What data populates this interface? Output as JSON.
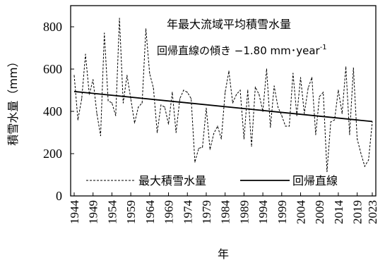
{
  "chart_data": {
    "type": "line",
    "title": "年最大流域平均積雪水量",
    "annotation": "回帰直線の傾き −1.80 mm･year",
    "annotation_superscript": "-1",
    "xlabel": "年",
    "ylabel": "積雪水量（mm）",
    "xlim": [
      1944,
      2023
    ],
    "ylim": [
      0,
      900
    ],
    "y_ticks": [
      0,
      200,
      400,
      600,
      800
    ],
    "x_ticks": [
      1944,
      1949,
      1954,
      1959,
      1964,
      1969,
      1974,
      1979,
      1984,
      1989,
      1994,
      1999,
      2004,
      2009,
      2014,
      2019,
      2023
    ],
    "legend_position": "bottom",
    "grid": false,
    "series": [
      {
        "name": "最大積雪水量",
        "style": "dashed",
        "x": [
          1944,
          1945,
          1946,
          1947,
          1948,
          1949,
          1950,
          1951,
          1952,
          1953,
          1954,
          1955,
          1956,
          1957,
          1958,
          1959,
          1960,
          1961,
          1962,
          1963,
          1964,
          1965,
          1966,
          1967,
          1968,
          1969,
          1970,
          1971,
          1972,
          1973,
          1974,
          1975,
          1976,
          1977,
          1978,
          1979,
          1980,
          1981,
          1982,
          1983,
          1984,
          1985,
          1986,
          1987,
          1988,
          1989,
          1990,
          1991,
          1992,
          1993,
          1994,
          1995,
          1996,
          1997,
          1998,
          1999,
          2000,
          2001,
          2002,
          2003,
          2004,
          2005,
          2006,
          2007,
          2008,
          2009,
          2010,
          2011,
          2012,
          2013,
          2014,
          2015,
          2016,
          2017,
          2018,
          2019,
          2020,
          2021,
          2022,
          2023
        ],
        "y": [
          570,
          360,
          460,
          670,
          480,
          550,
          390,
          285,
          770,
          450,
          440,
          380,
          840,
          440,
          570,
          460,
          345,
          420,
          440,
          790,
          580,
          510,
          300,
          430,
          420,
          340,
          490,
          300,
          460,
          500,
          490,
          460,
          160,
          225,
          230,
          415,
          220,
          295,
          330,
          270,
          490,
          590,
          440,
          480,
          500,
          270,
          500,
          235,
          515,
          480,
          400,
          600,
          325,
          520,
          420,
          380,
          330,
          330,
          580,
          380,
          560,
          390,
          510,
          560,
          290,
          470,
          490,
          115,
          350,
          360,
          500,
          390,
          610,
          290,
          605,
          270,
          200,
          140,
          170,
          350
        ]
      },
      {
        "name": "回帰直線",
        "style": "solid",
        "x": [
          1944,
          2023
        ],
        "y": [
          494,
          352
        ]
      }
    ]
  }
}
